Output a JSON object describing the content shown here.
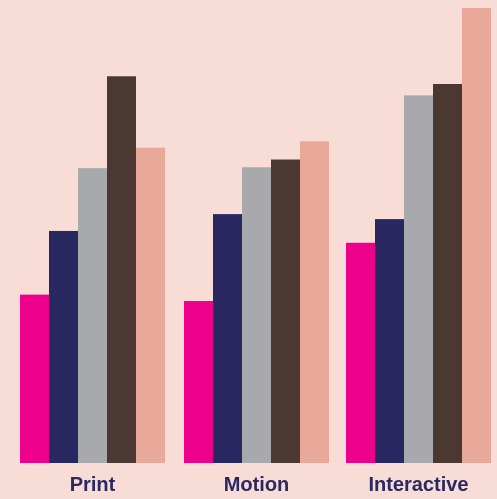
{
  "colors": {
    "background": "#f8dcd6",
    "label": "#2b2862"
  },
  "chart_data": {
    "type": "bar",
    "title": "",
    "xlabel": "",
    "ylabel": "",
    "categories": [
      "Print",
      "Motion",
      "Interactive"
    ],
    "ylim": [
      0,
      100
    ],
    "grid": false,
    "legend": "none",
    "series": [
      {
        "color": "#ec008c",
        "values": [
          37.0,
          35.6,
          48.4
        ]
      },
      {
        "color": "#29275f",
        "values": [
          51.0,
          54.7,
          53.6
        ]
      },
      {
        "color": "#a7a9ac",
        "values": [
          64.8,
          65.0,
          80.8
        ]
      },
      {
        "color": "#4b3832",
        "values": [
          85.0,
          66.7,
          83.3
        ]
      },
      {
        "color": "#e8a99b",
        "values": [
          69.3,
          70.7,
          100.0
        ]
      }
    ]
  }
}
